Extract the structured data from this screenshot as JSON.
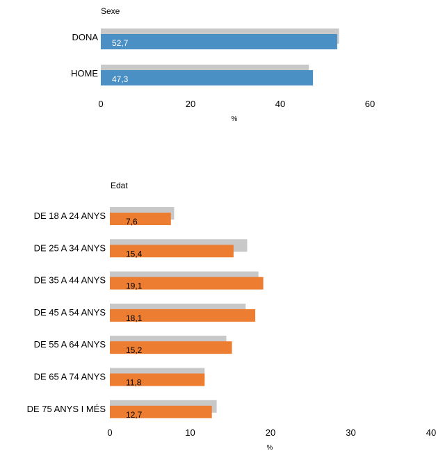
{
  "chart_data": [
    {
      "type": "bar",
      "title": "Sexe",
      "xlabel": "%",
      "categories": [
        "DONA",
        "HOME"
      ],
      "series": [
        {
          "values": [
            53.1,
            46.4
          ]
        },
        {
          "values": [
            52.7,
            47.3
          ]
        }
      ],
      "value_labels": [
        "52,7",
        "47,3"
      ],
      "ticks": [
        "0",
        "20",
        "40",
        "60"
      ],
      "xlim": [
        0,
        60
      ],
      "colors": {
        "reference": "#c8c8c8",
        "main": "#4a90c4",
        "label": "#ffffff"
      }
    },
    {
      "type": "bar",
      "title": "Edat",
      "xlabel": "%",
      "categories": [
        "DE 18 A 24 ANYS",
        "DE 25 A 34 ANYS",
        "DE 35 A 44 ANYS",
        "DE 45 A 54 ANYS",
        "DE 55 A 64 ANYS",
        "DE 65 A 74 ANYS",
        "DE 75 ANYS I MÉS"
      ],
      "series": [
        {
          "values": [
            8.0,
            17.1,
            18.5,
            16.9,
            14.5,
            11.8,
            13.3
          ]
        },
        {
          "values": [
            7.6,
            15.4,
            19.1,
            18.1,
            15.2,
            11.8,
            12.7
          ]
        }
      ],
      "value_labels": [
        "7,6",
        "15,4",
        "19,1",
        "18,1",
        "15,2",
        "11,8",
        "12,7"
      ],
      "ticks": [
        "0",
        "10",
        "20",
        "30",
        "40"
      ],
      "xlim": [
        0,
        40
      ],
      "colors": {
        "reference": "#c8c8c8",
        "main": "#ed7d31",
        "label": "#000000"
      }
    }
  ]
}
